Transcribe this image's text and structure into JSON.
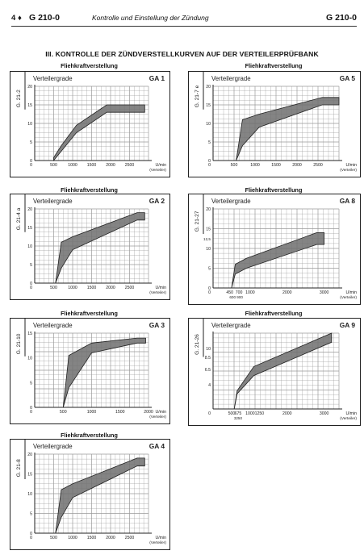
{
  "header": {
    "page": "4",
    "diamond": "♦",
    "code_left": "G 210-0",
    "title": "Kontrolle und Einstellung der Zündung",
    "code_right": "G 210-0"
  },
  "section_title": "III. KONTROLLE DER ZÜNDVERSTELLKURVEN AUF DER VERTEILERPRÜFBANK",
  "colors": {
    "band": "#6e6e6e",
    "grid": "#9a9a9a",
    "ink": "#222222"
  },
  "chart_data": [
    {
      "type": "area",
      "caption": "Fliehkraftverstellung",
      "side_code": "G. 21-2",
      "title": "Verteilergrade",
      "id": "GA 1",
      "ylim": [
        0,
        20
      ],
      "xlim": [
        0,
        3000
      ],
      "yticks": [
        0,
        5,
        10,
        15,
        20
      ],
      "xticks": [
        500,
        1000,
        1500,
        2000,
        2500
      ],
      "xunit": "U/min",
      "xnote": "(Verteiler)",
      "x": [
        500,
        700,
        1100,
        1900,
        2900
      ],
      "y_lower": [
        0,
        2.5,
        7.5,
        13,
        13
      ],
      "y_upper": [
        0.8,
        4,
        9.5,
        15,
        15
      ]
    },
    {
      "type": "area",
      "caption": "Fliehkraftverstellung",
      "side_code": "G. 21-7 e",
      "title": "Verteilergrade",
      "id": "GA 5",
      "ylim": [
        0,
        20
      ],
      "xlim": [
        0,
        3000
      ],
      "yticks": [
        0,
        5,
        10,
        15,
        20
      ],
      "xticks": [
        500,
        1000,
        1500,
        2000,
        2500
      ],
      "xunit": "U/min",
      "xnote": "(Verteiler)",
      "x": [
        550,
        700,
        1100,
        2600,
        3000
      ],
      "y_lower": [
        0,
        4,
        9,
        15,
        15
      ],
      "y_upper": [
        0,
        11,
        12.5,
        17,
        17
      ]
    },
    {
      "type": "area",
      "caption": "Fliehkraftverstellung",
      "side_code": "G. 21-4 a",
      "title": "Verteilergrade",
      "id": "GA 2",
      "ylim": [
        0,
        20
      ],
      "xlim": [
        0,
        3000
      ],
      "yticks": [
        0,
        5,
        10,
        15,
        20
      ],
      "xticks": [
        500,
        1000,
        1500,
        2000,
        2500
      ],
      "xunit": "U/min",
      "xnote": "(Verteiler)",
      "x": [
        550,
        700,
        1000,
        2700,
        2900
      ],
      "y_lower": [
        0,
        4,
        9,
        17,
        17
      ],
      "y_upper": [
        0,
        11,
        12.5,
        19,
        19
      ]
    },
    {
      "type": "area",
      "caption": "Fliehkraftverstellung",
      "side_code": "G. 21-27",
      "title": "Verteilergrade",
      "id": "GA 8",
      "ylim": [
        0,
        20
      ],
      "xlim": [
        0,
        3400
      ],
      "yticks": [
        0,
        5,
        10,
        15,
        20
      ],
      "xticks": [
        450,
        700,
        1000,
        2000,
        3000
      ],
      "xunit": "U/min",
      "xnote": "(Verteiler)",
      "extra_xlabels": "600 900",
      "extra_ytick": "12,5",
      "x": [
        500,
        600,
        900,
        2800,
        3000
      ],
      "y_lower": [
        0,
        3.5,
        5,
        11,
        11
      ],
      "y_upper": [
        0,
        6,
        7.5,
        14,
        14
      ]
    },
    {
      "type": "area",
      "caption": "Fliehkraftverstellung",
      "side_code": "G. 21-10",
      "title": "Verteilergrade",
      "id": "GA 3",
      "ylim": [
        0,
        15
      ],
      "xlim": [
        0,
        2000
      ],
      "yticks": [
        0,
        5,
        10,
        15
      ],
      "xticks": [
        500,
        1000,
        1500,
        2000
      ],
      "xunit": "U/min",
      "xnote": "(Verteiler)",
      "x": [
        500,
        600,
        1000,
        1800,
        1950
      ],
      "y_lower": [
        0,
        4,
        11,
        13,
        13
      ],
      "y_upper": [
        0,
        10.5,
        13,
        14,
        14
      ]
    },
    {
      "type": "area",
      "caption": "Fliehkraftverstellung",
      "side_code": "G. 21-26",
      "title": "Verteilergrade",
      "id": "GA 9",
      "ylim": [
        0,
        12.5
      ],
      "xlim": [
        0,
        3400
      ],
      "yticks": [
        10,
        8.5,
        6.5,
        4
      ],
      "xticks": [
        500,
        675,
        1000,
        1250,
        2000,
        3000
      ],
      "xunit": "U/min",
      "xnote": "(Verteiler)",
      "extra_xlabels": "3250",
      "x": [
        570,
        650,
        1100,
        3200
      ],
      "y_lower": [
        0,
        2.5,
        5.5,
        11
      ],
      "y_upper": [
        0,
        3,
        7,
        12.5
      ]
    },
    {
      "type": "area",
      "caption": "Fliehkraftverstellung",
      "side_code": "G. 21-8",
      "title": "Verteilergrade",
      "id": "GA 4",
      "ylim": [
        0,
        20
      ],
      "xlim": [
        0,
        3000
      ],
      "yticks": [
        0,
        5,
        10,
        15,
        20
      ],
      "xticks": [
        500,
        1000,
        1500,
        2000,
        2500
      ],
      "xunit": "U/min",
      "xnote": "(Verteiler)",
      "x": [
        550,
        700,
        1000,
        2700,
        2900
      ],
      "y_lower": [
        0,
        4,
        9,
        17,
        17
      ],
      "y_upper": [
        0,
        11,
        12.5,
        19,
        19
      ]
    }
  ]
}
